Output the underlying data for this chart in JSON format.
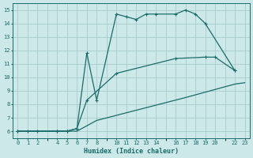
{
  "xlabel": "Humidex (Indice chaleur)",
  "bg_color": "#cce8e8",
  "grid_color": "#aacccc",
  "line_color": "#1a6b6b",
  "xlim": [
    -0.5,
    23.5
  ],
  "ylim": [
    5.5,
    15.5
  ],
  "xticks": [
    0,
    1,
    2,
    4,
    5,
    6,
    7,
    8,
    10,
    11,
    12,
    13,
    14,
    16,
    17,
    18,
    19,
    20,
    22,
    23
  ],
  "yticks": [
    6,
    7,
    8,
    9,
    10,
    11,
    12,
    13,
    14,
    15
  ],
  "line1_x": [
    0,
    1,
    2,
    4,
    5,
    6,
    7,
    8,
    10,
    11,
    12,
    13,
    14,
    16,
    17,
    18,
    19,
    22
  ],
  "line1_y": [
    6,
    6,
    6,
    6,
    6,
    6.2,
    11.8,
    8.3,
    14.7,
    14.5,
    14.3,
    14.7,
    14.7,
    14.7,
    15.0,
    14.7,
    14.0,
    10.5
  ],
  "line2_x": [
    0,
    4,
    5,
    6,
    7,
    10,
    16,
    19,
    20,
    22
  ],
  "line2_y": [
    6,
    6,
    6,
    6.2,
    8.3,
    10.3,
    11.4,
    11.5,
    11.5,
    10.5
  ],
  "line3_x": [
    0,
    4,
    5,
    6,
    8,
    17,
    22,
    23
  ],
  "line3_y": [
    6,
    6,
    6,
    6.0,
    6.8,
    8.5,
    9.5,
    9.6
  ]
}
